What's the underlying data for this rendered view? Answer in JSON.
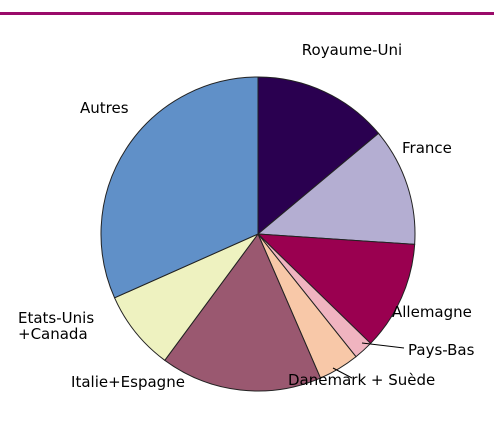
{
  "chart_data": {
    "type": "pie",
    "categories": [
      "Royaume-Uni",
      "France",
      "Allemagne",
      "Pays-Bas",
      "Danemark + Suède",
      "Italie+Espagne",
      "Etats-Unis\n+Canada",
      "Autres"
    ],
    "values": [
      13.9,
      12.1,
      11.2,
      2,
      4.2,
      16.6,
      8.2,
      31.6
    ],
    "colors": [
      "#2a0050",
      "#b4aed2",
      "#9a0050",
      "#f0b4c0",
      "#f8c8a8",
      "#9a5870",
      "#eef2c0",
      "#6090c8"
    ]
  }
}
